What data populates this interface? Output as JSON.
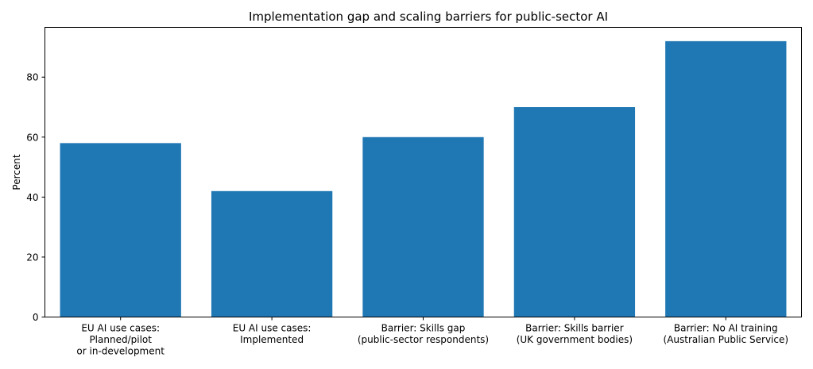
{
  "chart_data": {
    "type": "bar",
    "title": "Implementation gap and scaling barriers for public-sector AI",
    "xlabel": "",
    "ylabel": "Percent",
    "ylim": [
      0,
      96.6
    ],
    "yticks": [
      0,
      20,
      40,
      60,
      80
    ],
    "grid": false,
    "bar_color": "#1f77b4",
    "categories": [
      [
        "EU AI use cases:",
        "Planned/pilot",
        "or in-development"
      ],
      [
        "EU AI use cases:",
        "Implemented"
      ],
      [
        "Barrier: Skills gap",
        "(public-sector respondents)"
      ],
      [
        "Barrier: Skills barrier",
        "(UK government bodies)"
      ],
      [
        "Barrier: No AI training",
        "(Australian Public Service)"
      ]
    ],
    "values": [
      58,
      42,
      60,
      70,
      92
    ]
  }
}
